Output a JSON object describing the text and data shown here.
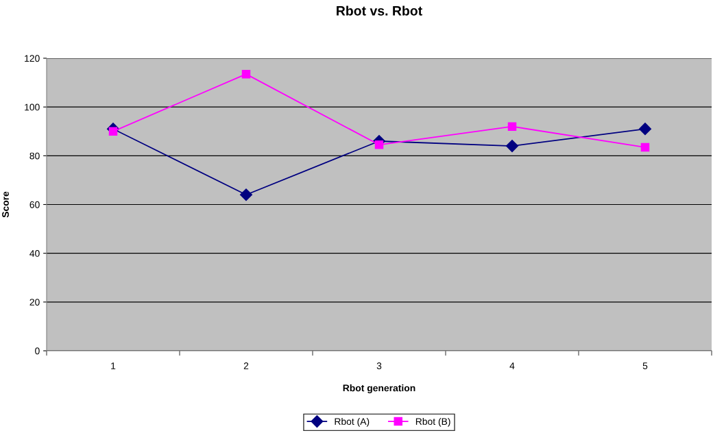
{
  "chart_data": {
    "type": "line",
    "title": "Rbot vs. Rbot",
    "xlabel": "Rbot generation",
    "ylabel": "Score",
    "categories": [
      "1",
      "2",
      "3",
      "4",
      "5"
    ],
    "series": [
      {
        "name": "Rbot (A)",
        "color": "#000080",
        "marker": "diamond",
        "values": [
          91,
          64,
          86,
          84,
          91
        ]
      },
      {
        "name": "Rbot (B)",
        "color": "#ff00ff",
        "marker": "square",
        "values": [
          90,
          113.5,
          84.5,
          92,
          83.5
        ]
      }
    ],
    "ylim": [
      0,
      120
    ],
    "yticks": [
      0,
      20,
      40,
      60,
      80,
      100,
      120
    ],
    "grid": "y",
    "legend": "bottom"
  }
}
